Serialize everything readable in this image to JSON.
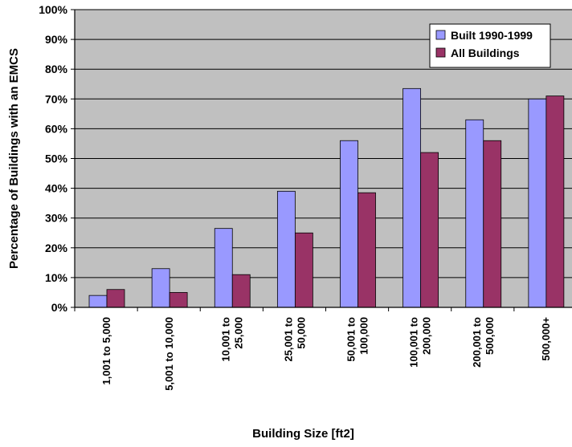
{
  "chart_data": {
    "type": "bar",
    "categories": [
      [
        "1,001 to 5,000"
      ],
      [
        "5,001 to 10,000"
      ],
      [
        "10,001 to",
        "25,000"
      ],
      [
        "25,001 to",
        "50,000"
      ],
      [
        "50,001 to",
        "100,000"
      ],
      [
        "100,001 to",
        "200,000"
      ],
      [
        "200,001 to",
        "500,000"
      ],
      [
        "500,000+"
      ]
    ],
    "series": [
      {
        "name": "Built 1990-1999",
        "color": "#9999ff",
        "values": [
          4,
          13,
          26.5,
          39,
          56,
          73.5,
          63,
          70
        ]
      },
      {
        "name": "All Buildings",
        "color": "#993366",
        "values": [
          6,
          5,
          11,
          25,
          38.5,
          52,
          56,
          71
        ]
      }
    ],
    "xlabel": "Building Size [ft2]",
    "ylabel": "Percentage of Buildings with an EMCS",
    "ylim": [
      0,
      100
    ],
    "yticks": [
      "0%",
      "10%",
      "20%",
      "30%",
      "40%",
      "50%",
      "60%",
      "70%",
      "80%",
      "90%",
      "100%"
    ],
    "grid": true,
    "plot_background": "#c0c0c0",
    "legend_position": "top-right"
  }
}
